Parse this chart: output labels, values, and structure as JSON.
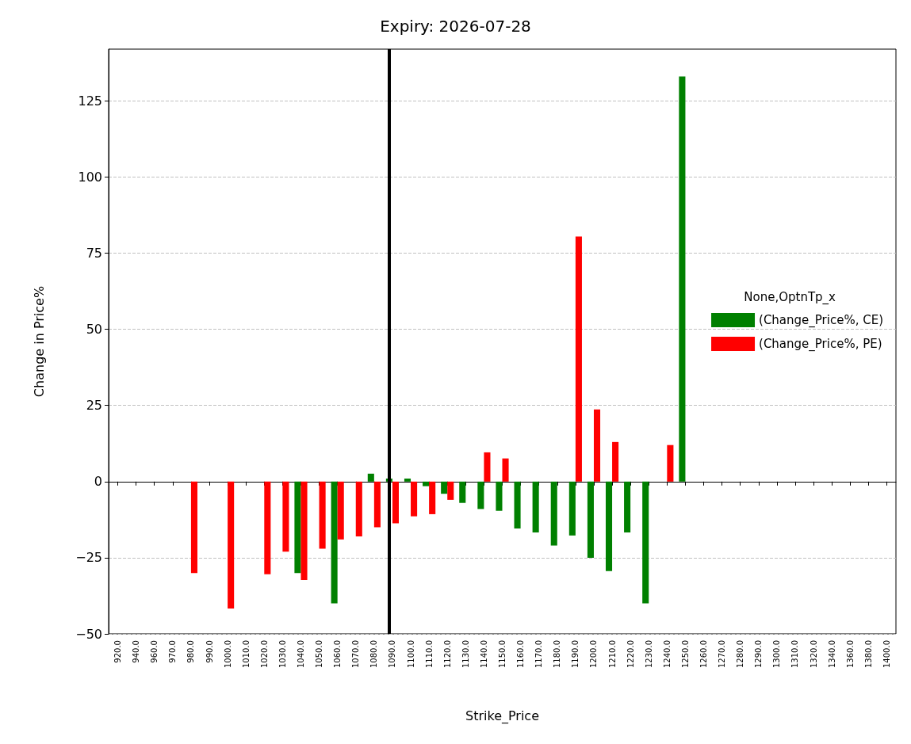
{
  "chart_data": {
    "type": "bar",
    "title": "Expiry: 2026-07-28",
    "xlabel": "Strike_Price",
    "ylabel": "Change in Price%",
    "legend_title": "None,OptnTp_x",
    "categories": [
      "920.0",
      "940.0",
      "960.0",
      "970.0",
      "980.0",
      "990.0",
      "1000.0",
      "1010.0",
      "1020.0",
      "1030.0",
      "1040.0",
      "1050.0",
      "1060.0",
      "1070.0",
      "1080.0",
      "1090.0",
      "1100.0",
      "1110.0",
      "1120.0",
      "1130.0",
      "1140.0",
      "1150.0",
      "1160.0",
      "1170.0",
      "1180.0",
      "1190.0",
      "1200.0",
      "1210.0",
      "1220.0",
      "1230.0",
      "1240.0",
      "1250.0",
      "1260.0",
      "1270.0",
      "1280.0",
      "1290.0",
      "1300.0",
      "1310.0",
      "1320.0",
      "1340.0",
      "1360.0",
      "1380.0",
      "1400.0"
    ],
    "series": [
      {
        "name": "(Change_Price%, CE)",
        "color": "#008000",
        "values": [
          null,
          null,
          null,
          null,
          null,
          null,
          null,
          null,
          null,
          null,
          -30,
          null,
          -40,
          null,
          2.6,
          1,
          1,
          -1.5,
          -4,
          -7,
          -9,
          -9.6,
          -15.4,
          -16.7,
          -21,
          -17.7,
          -25,
          -29.4,
          -16.7,
          -40,
          null,
          133,
          null,
          null,
          null,
          null,
          null,
          null,
          null,
          null,
          null,
          null,
          null
        ]
      },
      {
        "name": "(Change_Price%, PE)",
        "color": "#ff0000",
        "values": [
          null,
          null,
          null,
          null,
          -30,
          null,
          -41.7,
          null,
          -30.4,
          -23,
          -32.3,
          -22,
          -19,
          -18,
          -15,
          -13.7,
          -11.4,
          -10.7,
          -6,
          null,
          9.6,
          7.6,
          null,
          null,
          null,
          80.5,
          23.7,
          13,
          null,
          null,
          12,
          null,
          null,
          null,
          null,
          null,
          null,
          null,
          null,
          null,
          null,
          null,
          null
        ]
      }
    ],
    "ylim": [
      -50,
      142
    ],
    "yticks": [
      -50,
      -25,
      0,
      25,
      50,
      75,
      100,
      125
    ],
    "grid": "y",
    "legend": "right",
    "ref_lines": [
      {
        "axis": "x",
        "value": "1090.0",
        "color": "#000000",
        "line_style": "solid"
      }
    ]
  }
}
